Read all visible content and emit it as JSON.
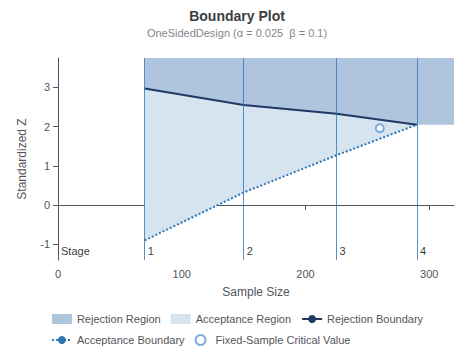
{
  "chart_data": {
    "type": "line",
    "title": "Boundary Plot",
    "subtitle": "OneSidedDesign (α = 0.025  β = 0.1)",
    "xlabel": "Sample Size",
    "ylabel": "Standardized Z",
    "xlim": [
      0,
      320
    ],
    "ylim": [
      -1.4,
      3.75
    ],
    "xticks": [
      0,
      100,
      200,
      300
    ],
    "yticks": [
      -1,
      0,
      1,
      2,
      3
    ],
    "grid": false,
    "legend": "bottom",
    "x": [
      70,
      150,
      225,
      290
    ],
    "stage_label": "Stage",
    "stages": [
      1,
      2,
      3,
      4
    ],
    "series": [
      {
        "name": "Rejection Region",
        "type": "band",
        "color": "#afc5de",
        "lower": [
          2.97,
          2.55,
          2.33,
          2.05
        ]
      },
      {
        "name": "Acceptance Region",
        "type": "band",
        "color": "#d6e4f0",
        "lower": [
          -0.9,
          0.32,
          1.27,
          2.05
        ],
        "upper": [
          2.97,
          2.55,
          2.33,
          2.05
        ]
      },
      {
        "name": "Rejection Boundary",
        "type": "line",
        "color": "#1f3864",
        "line_style": "solid",
        "values": [
          2.97,
          2.55,
          2.33,
          2.05
        ]
      },
      {
        "name": "Acceptance Boundary",
        "type": "line",
        "color": "#2e75b6",
        "line_style": "dotted",
        "values": [
          -0.9,
          0.32,
          1.27,
          2.05
        ]
      },
      {
        "name": "Fixed-Sample Critical Value",
        "type": "scatter",
        "color": "#5b9bd5",
        "marker": "open_circle",
        "x": [
          260
        ],
        "values": [
          1.96
        ]
      }
    ]
  }
}
